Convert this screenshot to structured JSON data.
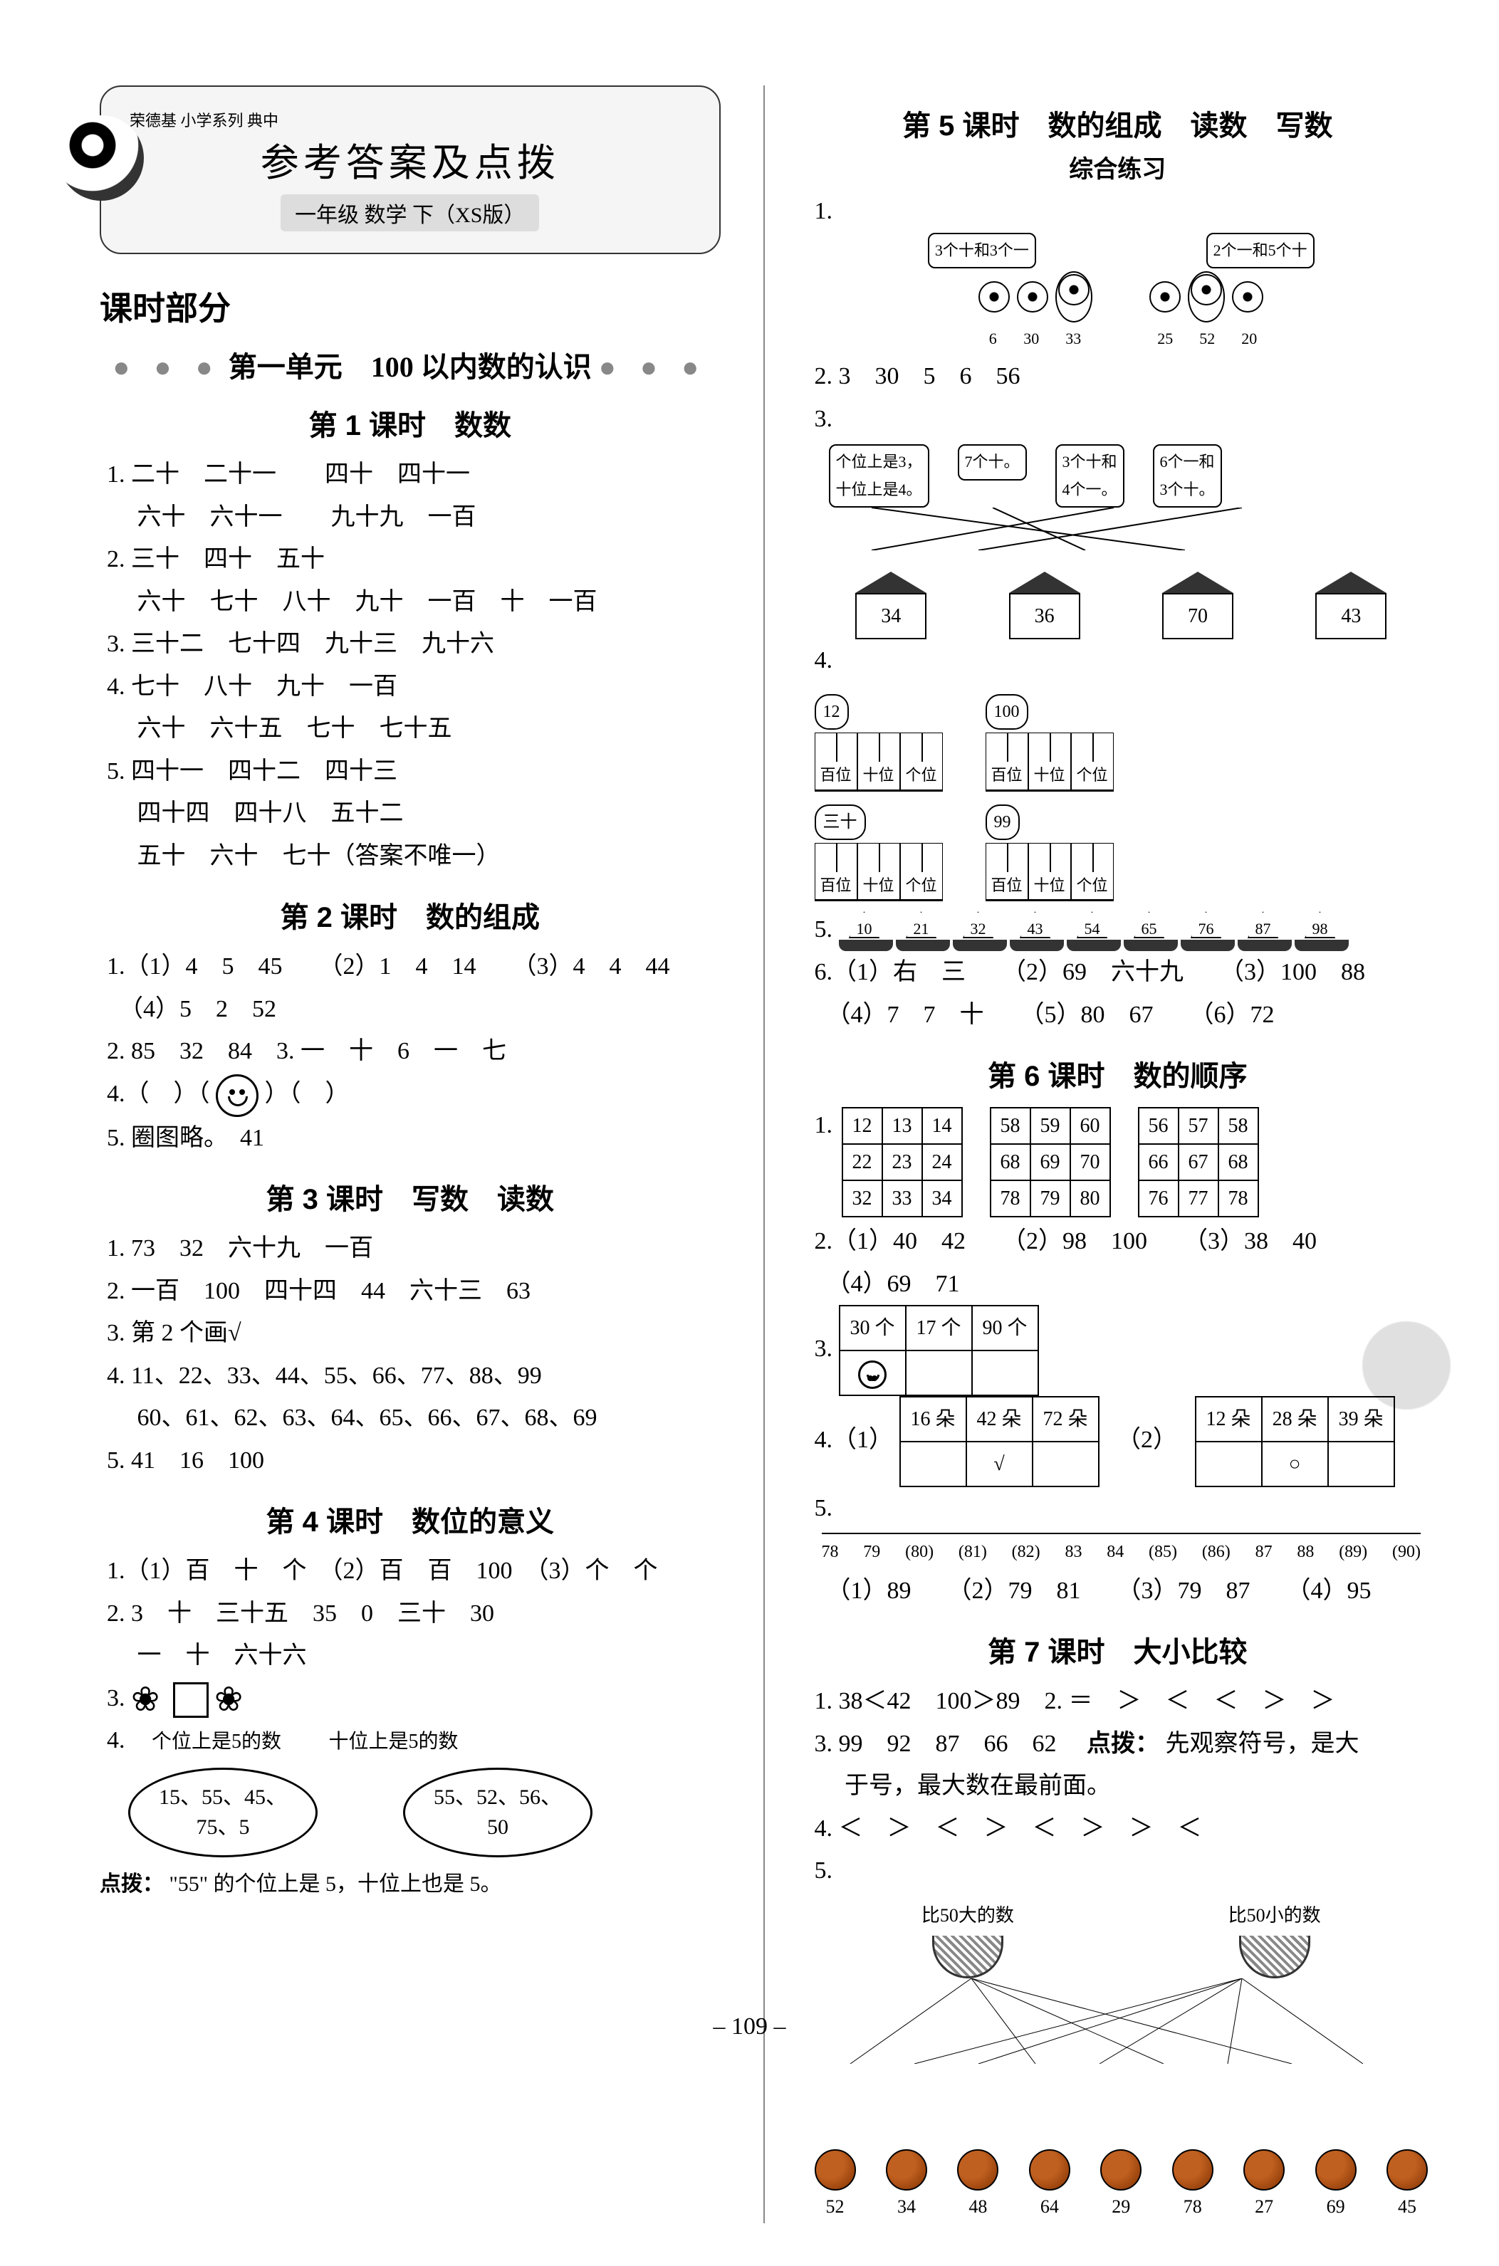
{
  "header": {
    "brand_top": "荣德基 小学系列 典中",
    "title": "参考答案及点拨",
    "subtitle": "一年级 数学 下（XS版）"
  },
  "left": {
    "section": "课时部分",
    "unit": "第一单元　100 以内数的认识",
    "lesson1": {
      "title": "第 1 课时　数数",
      "q1a": "1. 二十　二十一　　四十　四十一",
      "q1b": "　 六十　六十一　　九十九　一百",
      "q2a": "2. 三十　四十　五十",
      "q2b": "　 六十　七十　八十　九十　一百　十　一百",
      "q3": "3. 三十二　七十四　九十三　九十六",
      "q4a": "4. 七十　八十　九十　一百",
      "q4b": "　 六十　六十五　七十　七十五",
      "q5a": "5. 四十一　四十二　四十三",
      "q5b": "　 四十四　四十八　五十二",
      "q5c": "　 五十　六十　七十（答案不唯一）"
    },
    "lesson2": {
      "title": "第 2 课时　数的组成",
      "q1": "1.（1）4　5　45　　（2）1　4　14　　（3）4　4　44",
      "q1b": "　（4）5　2　52",
      "q2": "2. 85　32　84　3. 一　十　6　一　七",
      "q4": "4.（　）（",
      "q4end": "）（　）",
      "q5": "5. 圈图略。　41"
    },
    "lesson3": {
      "title": "第 3 课时　写数　读数",
      "q1": "1. 73　32　六十九　一百",
      "q2": "2. 一百　100　四十四　44　六十三　63",
      "q3": "3. 第 2 个画√",
      "q4a": "4. 11、22、33、44、55、66、77、88、99",
      "q4b": "　 60、61、62、63、64、65、66、67、68、69",
      "q5": "5. 41　16　100"
    },
    "lesson4": {
      "title": "第 4 课时　数位的意义",
      "q1": "1.（1）百　十　个　（2）百　百　100　（3）个　个",
      "q2a": "2. 3　十　三十五　35　0　三十　30",
      "q2b": "　 一　十　六十六",
      "q3_label": "3.",
      "q4_label": "4.",
      "q4_left_header": "个位上是5的数",
      "q4_right_header": "十位上是5的数",
      "q4_left_vals": "15、55、45、\n75、5",
      "q4_right_vals": "55、52、56、\n50",
      "tip_label": "点拨：",
      "tip": "\"55\" 的个位上是 5，十位上也是 5。"
    }
  },
  "right": {
    "lesson5": {
      "title": "第 5 课时　数的组成　读数　写数",
      "subtitle": "综合练习",
      "q1_banner_left": "3个十和3个一",
      "q1_banner_right": "2个一和5个十",
      "q1_nums": [
        "6",
        "30",
        "33",
        "25",
        "52",
        "20"
      ],
      "q2": "2. 3　30　5　6　56",
      "q3_label": "3.",
      "q3_bubbles": [
        "个位上是3，\n十位上是4。",
        "7个十。",
        "3个十和\n4个一。",
        "6个一和\n3个十。"
      ],
      "q3_houses": [
        "34",
        "36",
        "70",
        "43"
      ],
      "q4_label": "4.",
      "q4_bubble1": "12",
      "q4_bubble2": "100",
      "q4_bubble3": "三十",
      "q4_bubble4": "99",
      "abacus_labels": [
        "百位",
        "十位",
        "个位"
      ],
      "q5_label": "5.",
      "q5_sails": [
        "10",
        "21",
        "32",
        "43",
        "54",
        "65",
        "76",
        "87",
        "98"
      ],
      "q6": "6.（1）右　三　　（2）69　六十九　　（3）100　88",
      "q6b": "　（4）7　7　十　　（5）80　67　　（6）72"
    },
    "lesson6": {
      "title": "第 6 课时　数的顺序",
      "grid1": [
        [
          "12",
          "13",
          "14"
        ],
        [
          "22",
          "23",
          "24"
        ],
        [
          "32",
          "33",
          "34"
        ]
      ],
      "grid2": [
        [
          "58",
          "59",
          "60"
        ],
        [
          "68",
          "69",
          "70"
        ],
        [
          "78",
          "79",
          "80"
        ]
      ],
      "grid3": [
        [
          "56",
          "57",
          "58"
        ],
        [
          "66",
          "67",
          "68"
        ],
        [
          "76",
          "77",
          "78"
        ]
      ],
      "q2": "2.（1）40　42　　（2）98　100　　（3）38　40",
      "q2b": "　（4）69　71",
      "q3_label": "3.",
      "q3_headers": [
        "30 个",
        "17 个",
        "90 个"
      ],
      "q4_label": "4.（1）",
      "q4_mid": "（2）",
      "q4_t1": [
        [
          "16 朵",
          "42 朵",
          "72 朵"
        ],
        [
          "",
          "√",
          ""
        ]
      ],
      "q4_t2": [
        [
          "12 朵",
          "28 朵",
          "39 朵"
        ],
        [
          "",
          "○",
          ""
        ]
      ],
      "q5_label": "5.",
      "q5_numline": [
        "78",
        "79",
        "(80)",
        "(81)",
        "(82)",
        "83",
        "84",
        "(85)",
        "(86)",
        "87",
        "88",
        "(89)",
        "(90)"
      ],
      "q5_ans": "　（1）89　　（2）79　81　　（3）79　87　　（4）95"
    },
    "lesson7": {
      "title": "第 7 课时　大小比较",
      "q1": "1. 38＜42　100＞89　2. ＝　＞　＜　＜　＞　＞",
      "q3": "3. 99　92　87　66　62　",
      "q3_tip_label": "点拨：",
      "q3_tip": "先观察符号，是大",
      "q3_tip2": "　 于号，最大数在最前面。",
      "q4": "4. ＜　＞　＜　＞　＜　＞　＞　＜",
      "q5_label": "5.",
      "basket_left": "比50大的数",
      "basket_right": "比50小的数",
      "balls": [
        "52",
        "34",
        "48",
        "64",
        "29",
        "78",
        "27",
        "69",
        "45"
      ]
    }
  },
  "page_number": "– 109 –",
  "colors": {
    "text": "#000000",
    "bg": "#ffffff",
    "accent": "#888888"
  }
}
